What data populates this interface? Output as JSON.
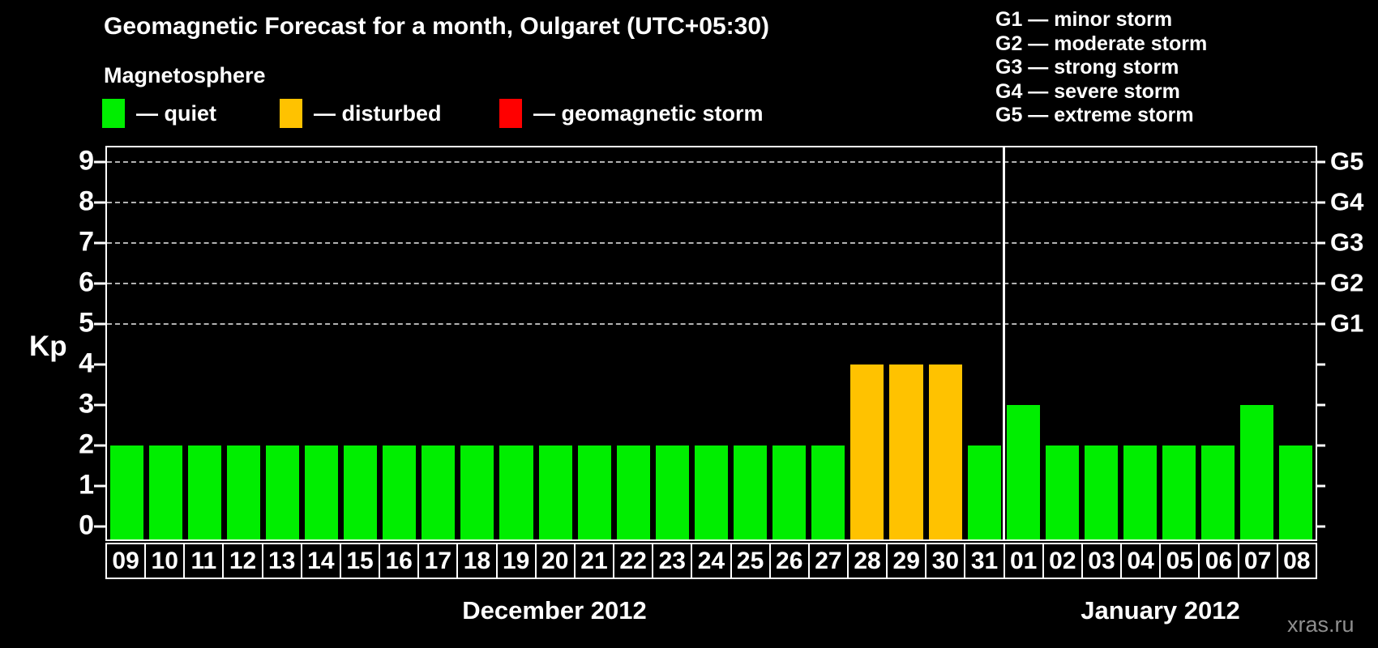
{
  "header": {
    "title": "Geomagnetic Forecast for a month, Oulgaret (UTC+05:30)",
    "legend_heading": "Magnetosphere",
    "legend_items": [
      {
        "name": "quiet",
        "label": "— quiet",
        "color": "#00ee00"
      },
      {
        "name": "disturbed",
        "label": "— disturbed",
        "color": "#ffc200"
      },
      {
        "name": "geomagnetic-storm",
        "label": "— geomagnetic storm",
        "color": "#ff0000"
      }
    ],
    "g_scale_legend": [
      "G1 — minor storm",
      "G2 — moderate storm",
      "G3 — strong storm",
      "G4 — severe storm",
      "G5 — extreme storm"
    ]
  },
  "watermark": "xras.ru",
  "chart_data": {
    "type": "bar",
    "ylabel": "Kp",
    "ylim": [
      0,
      9
    ],
    "yticks": [
      0,
      1,
      2,
      3,
      4,
      5,
      6,
      7,
      8,
      9
    ],
    "gridlines_at_kp": [
      5,
      6,
      7,
      8,
      9
    ],
    "grid": "dashed-horizontal",
    "legend_position": "top-left",
    "right_axis_labels": [
      {
        "label": "G1",
        "kp": 5
      },
      {
        "label": "G2",
        "kp": 6
      },
      {
        "label": "G3",
        "kp": 7
      },
      {
        "label": "G4",
        "kp": 8
      },
      {
        "label": "G5",
        "kp": 9
      }
    ],
    "status_colors": {
      "quiet": "#00ee00",
      "disturbed": "#ffc200",
      "storm": "#ff0000"
    },
    "months": [
      {
        "label": "December 2012",
        "days": [
          "09",
          "10",
          "11",
          "12",
          "13",
          "14",
          "15",
          "16",
          "17",
          "18",
          "19",
          "20",
          "21",
          "22",
          "23",
          "24",
          "25",
          "26",
          "27",
          "28",
          "29",
          "30",
          "31"
        ],
        "values": [
          2,
          2,
          2,
          2,
          2,
          2,
          2,
          2,
          2,
          2,
          2,
          2,
          2,
          2,
          2,
          2,
          2,
          2,
          2,
          4,
          4,
          4,
          2
        ],
        "statuses": [
          "quiet",
          "quiet",
          "quiet",
          "quiet",
          "quiet",
          "quiet",
          "quiet",
          "quiet",
          "quiet",
          "quiet",
          "quiet",
          "quiet",
          "quiet",
          "quiet",
          "quiet",
          "quiet",
          "quiet",
          "quiet",
          "quiet",
          "disturbed",
          "disturbed",
          "disturbed",
          "quiet"
        ]
      },
      {
        "label": "January 2012",
        "days": [
          "01",
          "02",
          "03",
          "04",
          "05",
          "06",
          "07",
          "08"
        ],
        "values": [
          3,
          2,
          2,
          2,
          2,
          2,
          3,
          2
        ],
        "statuses": [
          "quiet",
          "quiet",
          "quiet",
          "quiet",
          "quiet",
          "quiet",
          "quiet",
          "quiet"
        ]
      }
    ]
  }
}
